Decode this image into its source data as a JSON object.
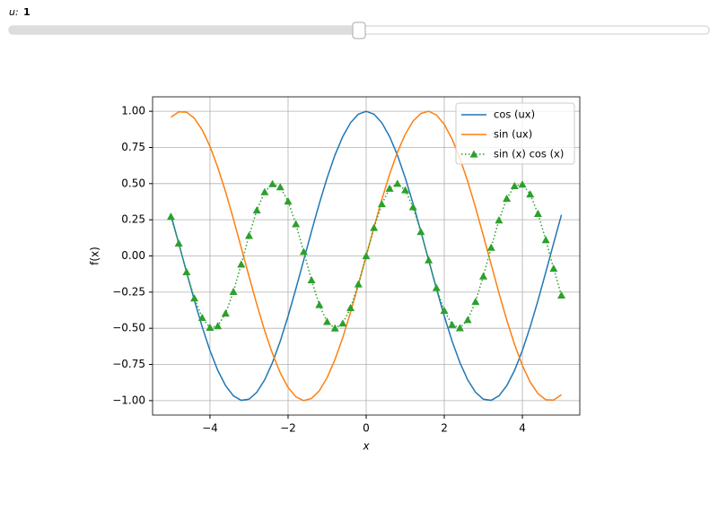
{
  "slider": {
    "label": "u:",
    "value": 1
  },
  "chart_data": {
    "type": "line",
    "xlabel": "x",
    "ylabel": "f(x)",
    "x": [
      -5.0,
      -4.8,
      -4.6,
      -4.4,
      -4.2,
      -4.0,
      -3.8,
      -3.6,
      -3.4,
      -3.2,
      -3.0,
      -2.8,
      -2.6,
      -2.4,
      -2.2,
      -2.0,
      -1.8,
      -1.6,
      -1.4,
      -1.2,
      -1.0,
      -0.8,
      -0.6,
      -0.4,
      -0.2,
      0,
      0.2,
      0.4,
      0.6,
      0.8,
      1.0,
      1.2,
      1.4,
      1.6,
      1.8,
      2.0,
      2.2,
      2.4,
      2.6,
      2.8,
      3.0,
      3.2,
      3.4,
      3.6,
      3.8,
      4.0,
      4.2,
      4.4,
      4.6,
      4.8,
      5.0
    ],
    "series": [
      {
        "name": "cos (ux)",
        "color": "#1f77b4",
        "linestyle": "solid",
        "values": [
          0.284,
          0.087,
          -0.112,
          -0.307,
          -0.49,
          -0.654,
          -0.791,
          -0.897,
          -0.967,
          -0.998,
          -0.99,
          -0.942,
          -0.857,
          -0.737,
          -0.589,
          -0.416,
          -0.227,
          -0.029,
          0.17,
          0.362,
          0.54,
          0.697,
          0.825,
          0.921,
          0.98,
          1,
          0.98,
          0.921,
          0.825,
          0.697,
          0.54,
          0.362,
          0.17,
          -0.029,
          -0.227,
          -0.416,
          -0.589,
          -0.737,
          -0.857,
          -0.942,
          -0.99,
          -0.998,
          -0.967,
          -0.897,
          -0.791,
          -0.654,
          -0.49,
          -0.307,
          -0.112,
          0.087,
          0.284
        ]
      },
      {
        "name": "sin (ux)",
        "color": "#ff7f0e",
        "linestyle": "solid",
        "values": [
          0.959,
          0.996,
          0.994,
          0.952,
          0.872,
          0.757,
          0.612,
          0.443,
          0.256,
          0.058,
          -0.141,
          -0.335,
          -0.516,
          -0.675,
          -0.808,
          -0.909,
          -0.974,
          -1.0,
          -0.985,
          -0.932,
          -0.841,
          -0.717,
          -0.565,
          -0.389,
          -0.199,
          0,
          0.199,
          0.389,
          0.565,
          0.717,
          0.841,
          0.932,
          0.985,
          1.0,
          0.974,
          0.909,
          0.808,
          0.675,
          0.516,
          0.335,
          0.141,
          -0.058,
          -0.256,
          -0.443,
          -0.612,
          -0.757,
          -0.872,
          -0.952,
          -0.994,
          -0.996,
          -0.959
        ]
      },
      {
        "name": "sin (x) cos (x)",
        "color": "#2ca02c",
        "linestyle": "dotted",
        "marker": "triangle",
        "values": [
          0.272,
          0.087,
          -0.111,
          -0.292,
          -0.427,
          -0.495,
          -0.484,
          -0.397,
          -0.247,
          -0.058,
          0.14,
          0.316,
          0.442,
          0.498,
          0.476,
          0.378,
          0.221,
          0.029,
          -0.167,
          -0.338,
          -0.455,
          -0.5,
          -0.466,
          -0.359,
          -0.195,
          0,
          0.195,
          0.359,
          0.466,
          0.5,
          0.455,
          0.338,
          0.167,
          -0.029,
          -0.221,
          -0.378,
          -0.476,
          -0.498,
          -0.442,
          -0.316,
          -0.14,
          0.058,
          0.247,
          0.397,
          0.484,
          0.495,
          0.427,
          0.292,
          0.111,
          -0.087,
          -0.272
        ]
      }
    ],
    "xlim": [
      -5.47,
      5.47
    ],
    "ylim": [
      -1.1,
      1.1
    ],
    "xticks": [
      {
        "value": -4,
        "label": "−4"
      },
      {
        "value": -2,
        "label": "−2"
      },
      0,
      2,
      4
    ],
    "yticks": [
      {
        "value": -1,
        "label": "−1.00"
      },
      {
        "value": -0.75,
        "label": "−0.75"
      },
      {
        "value": -0.5,
        "label": "−0.50"
      },
      {
        "value": -0.25,
        "label": "−0.25"
      },
      {
        "value": 0,
        "label": "0.00"
      },
      {
        "value": 0.25,
        "label": "0.25"
      },
      {
        "value": 0.5,
        "label": "0.50"
      },
      {
        "value": 0.75,
        "label": "0.75"
      },
      {
        "value": 1,
        "label": "1.00"
      }
    ],
    "grid": true,
    "legend": "upper right"
  }
}
